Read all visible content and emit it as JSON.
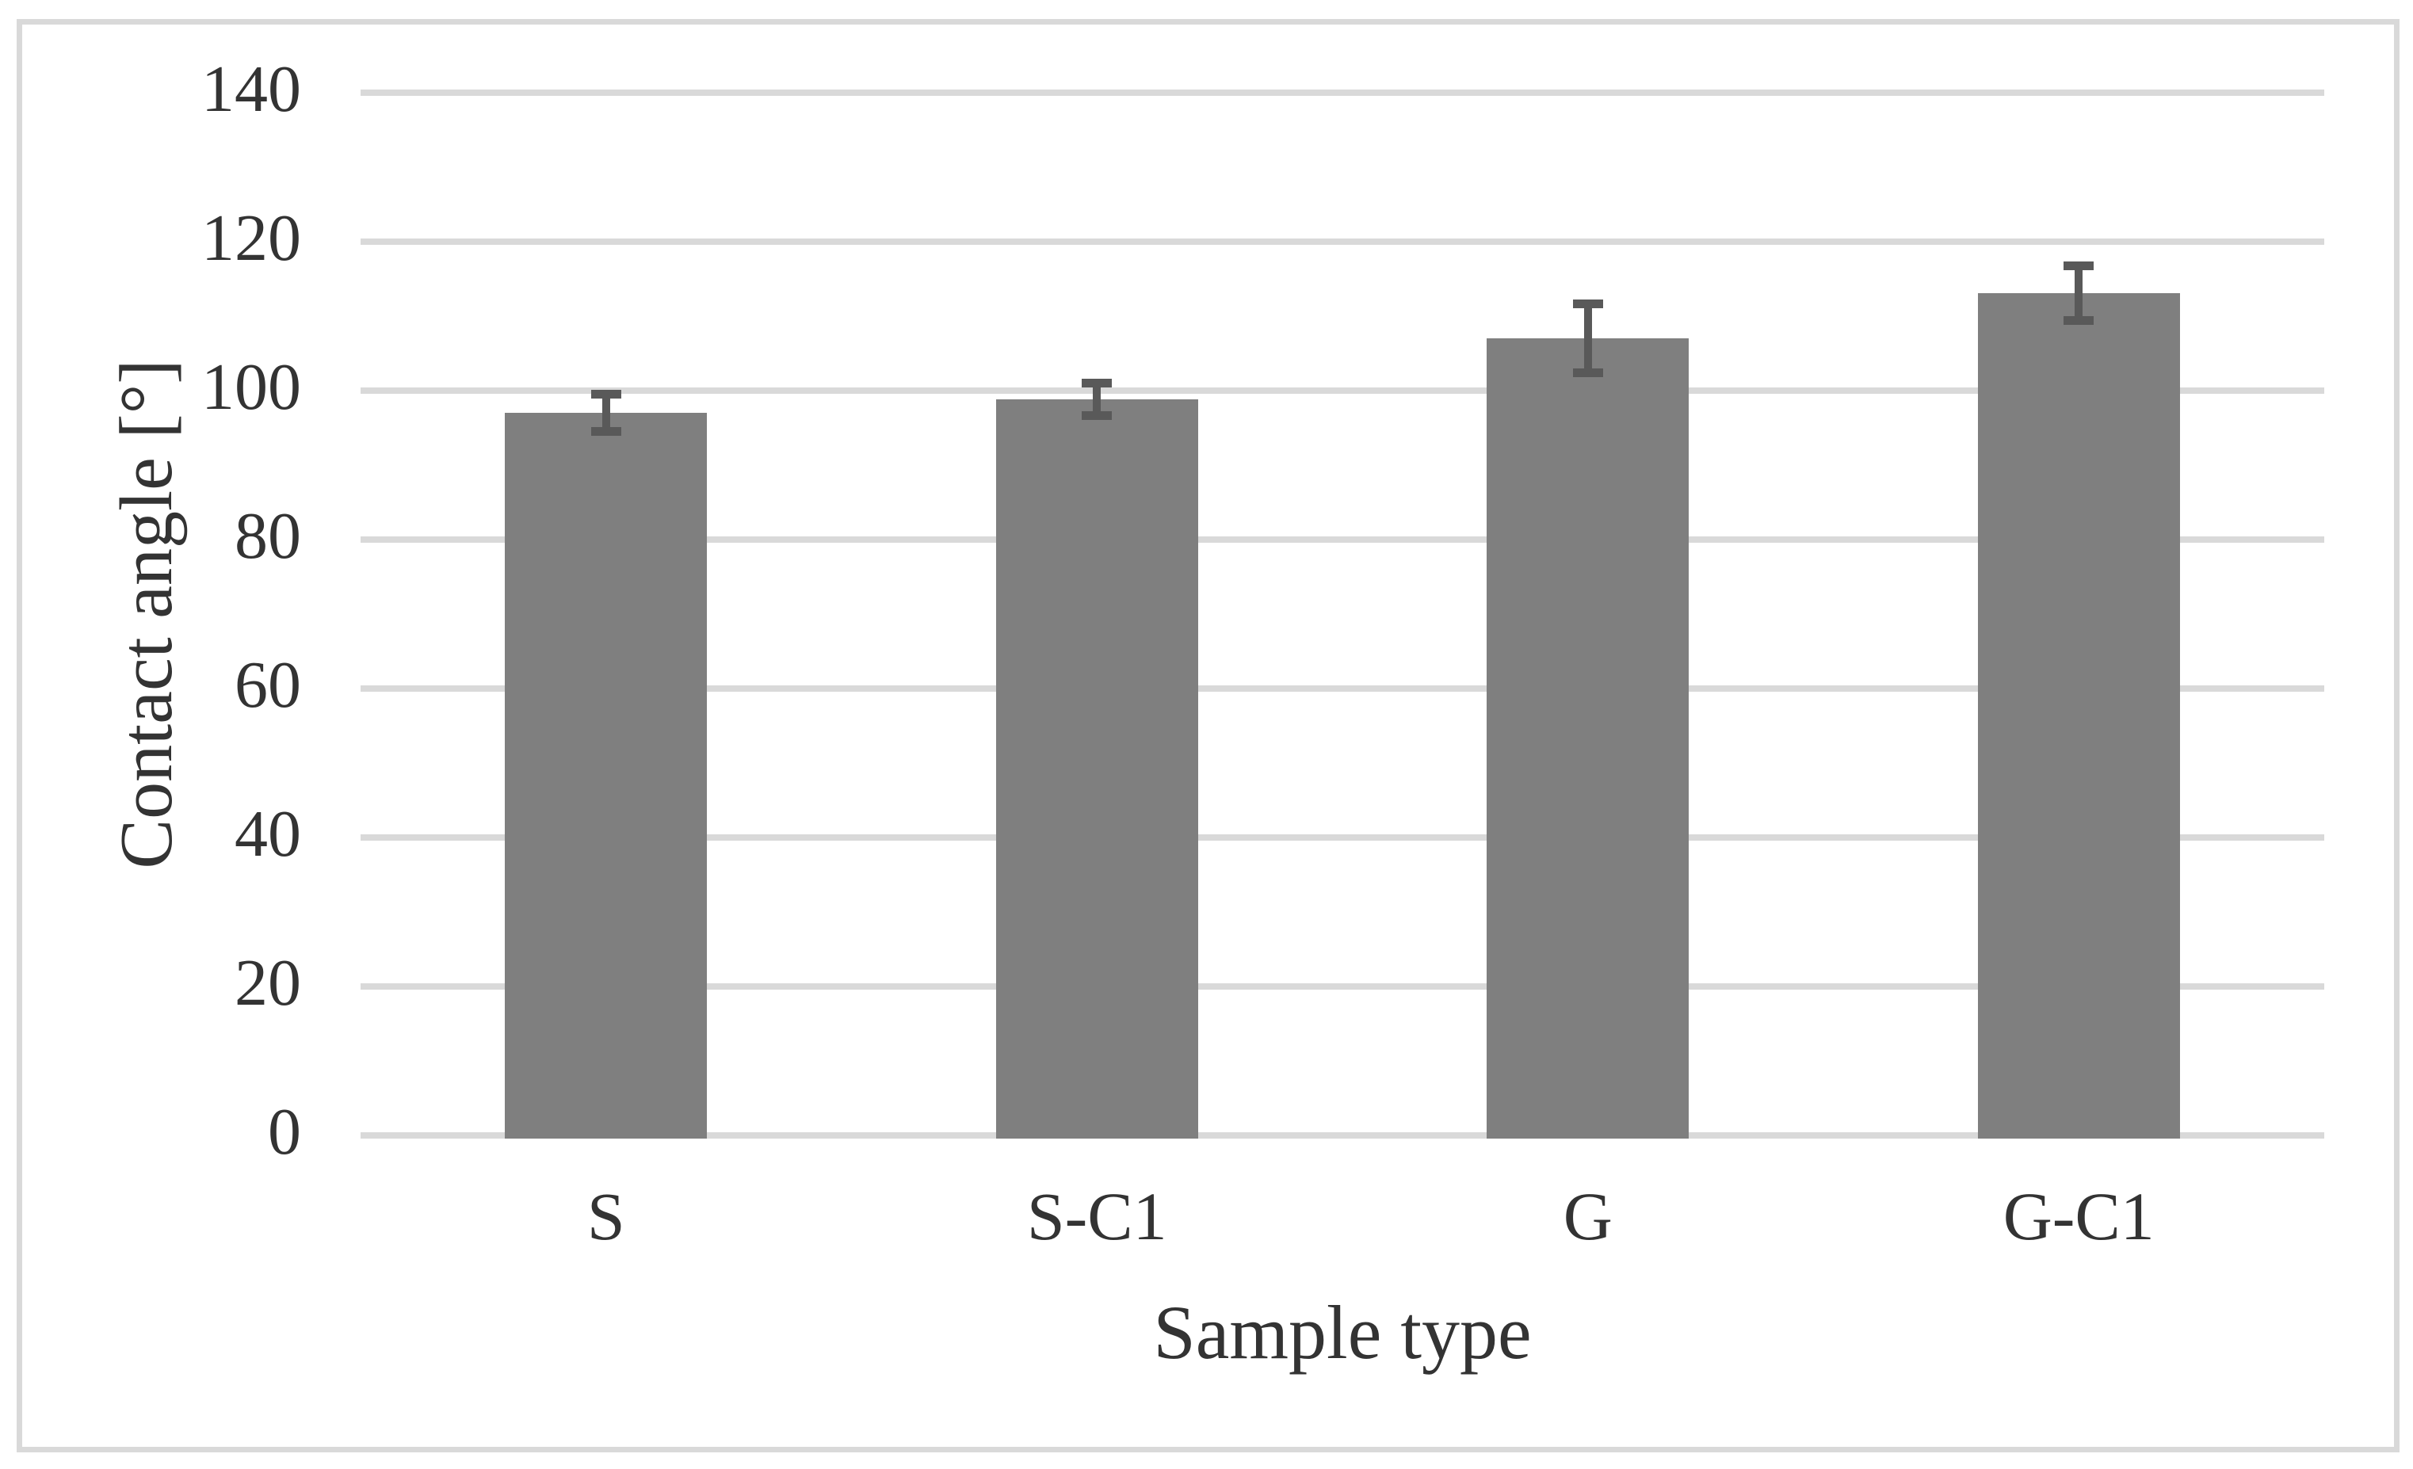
{
  "figure": {
    "background_color": "#ffffff",
    "border_color": "#d9d9d9",
    "text_color": "#333333"
  },
  "chart_data": {
    "type": "bar",
    "title": "",
    "xlabel": "Sample type",
    "ylabel": "Contact angle [°]",
    "categories": [
      "S",
      "S-C1",
      "G",
      "G-C1"
    ],
    "series": [
      {
        "name": "Contact angle",
        "values": [
          97.0,
          98.8,
          107.0,
          113.1
        ],
        "errors": [
          2.5,
          2.2,
          4.6,
          3.7
        ]
      }
    ],
    "ylim": [
      0,
      140
    ],
    "yticks": [
      0,
      20,
      40,
      60,
      80,
      100,
      120,
      140
    ],
    "grid": true,
    "legend": "none",
    "bar_color": "#7f7f7f",
    "error_bar_color": "#595959",
    "gridline_color": "#d9d9d9"
  }
}
